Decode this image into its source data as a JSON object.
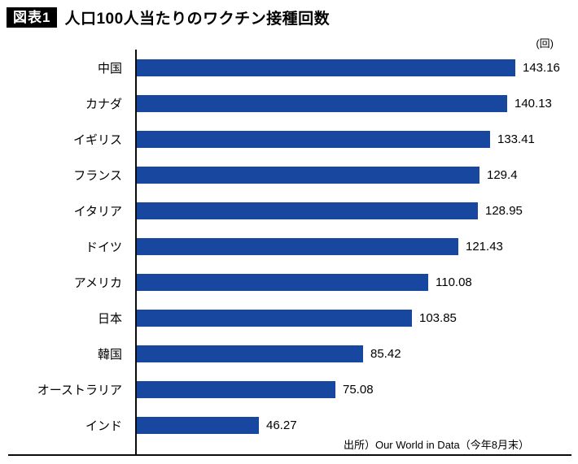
{
  "header": {
    "badge": "図表1",
    "title": "人口100人当たりのワクチン接種回数"
  },
  "chart_data": {
    "type": "bar",
    "orientation": "horizontal",
    "title": "人口100人当たりのワクチン接種回数",
    "unit": "(回)",
    "categories": [
      "中国",
      "カナダ",
      "イギリス",
      "フランス",
      "イタリア",
      "ドイツ",
      "アメリカ",
      "日本",
      "韓国",
      "オーストラリア",
      "インド"
    ],
    "values": [
      143.16,
      140.13,
      133.41,
      129.4,
      128.95,
      121.43,
      110.08,
      103.85,
      85.42,
      75.08,
      46.27
    ],
    "xlim": [
      0,
      150
    ],
    "bar_color": "#17479e",
    "grid": false,
    "legend": false,
    "source": "出所）Our World in Data（今年8月末）"
  }
}
